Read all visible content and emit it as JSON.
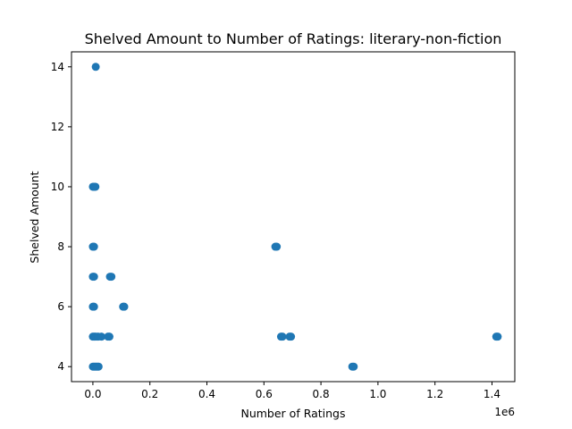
{
  "chart_data": {
    "type": "scatter",
    "title": "Shelved Amount to Number of Ratings: literary-non-fiction",
    "xlabel": "Number of Ratings",
    "ylabel": "Shelved Amount",
    "x_offset_label": "1e6",
    "xlim": [
      -75000,
      1480000
    ],
    "ylim": [
      3.5,
      14.5
    ],
    "x_ticks": [
      0,
      200000,
      400000,
      600000,
      800000,
      1000000,
      1200000,
      1400000
    ],
    "x_tick_labels": [
      "0.0",
      "0.2",
      "0.4",
      "0.6",
      "0.8",
      "1.0",
      "1.2",
      "1.4"
    ],
    "y_ticks": [
      4,
      6,
      8,
      10,
      12,
      14
    ],
    "y_tick_labels": [
      "4",
      "6",
      "8",
      "10",
      "12",
      "14"
    ],
    "grid": false,
    "marker_color": "#1f77b4",
    "points": [
      {
        "x": 10000,
        "y": 14
      },
      {
        "x": 0,
        "y": 10
      },
      {
        "x": 3000,
        "y": 10
      },
      {
        "x": 6000,
        "y": 10
      },
      {
        "x": 9000,
        "y": 10
      },
      {
        "x": 0,
        "y": 8
      },
      {
        "x": 4000,
        "y": 8
      },
      {
        "x": 640000,
        "y": 8
      },
      {
        "x": 645000,
        "y": 8
      },
      {
        "x": 0,
        "y": 7
      },
      {
        "x": 4000,
        "y": 7
      },
      {
        "x": 60000,
        "y": 7
      },
      {
        "x": 65000,
        "y": 7
      },
      {
        "x": 0,
        "y": 6
      },
      {
        "x": 4000,
        "y": 6
      },
      {
        "x": 106000,
        "y": 6
      },
      {
        "x": 110000,
        "y": 6
      },
      {
        "x": 0,
        "y": 5
      },
      {
        "x": 5000,
        "y": 5
      },
      {
        "x": 10000,
        "y": 5
      },
      {
        "x": 18000,
        "y": 5
      },
      {
        "x": 30000,
        "y": 5
      },
      {
        "x": 53000,
        "y": 5
      },
      {
        "x": 58000,
        "y": 5
      },
      {
        "x": 660000,
        "y": 5
      },
      {
        "x": 665000,
        "y": 5
      },
      {
        "x": 690000,
        "y": 5
      },
      {
        "x": 695000,
        "y": 5
      },
      {
        "x": 1415000,
        "y": 5
      },
      {
        "x": 1420000,
        "y": 5
      },
      {
        "x": 0,
        "y": 4
      },
      {
        "x": 4000,
        "y": 4
      },
      {
        "x": 8000,
        "y": 4
      },
      {
        "x": 12000,
        "y": 4
      },
      {
        "x": 16000,
        "y": 4
      },
      {
        "x": 20000,
        "y": 4
      },
      {
        "x": 910000,
        "y": 4
      },
      {
        "x": 915000,
        "y": 4
      }
    ]
  }
}
